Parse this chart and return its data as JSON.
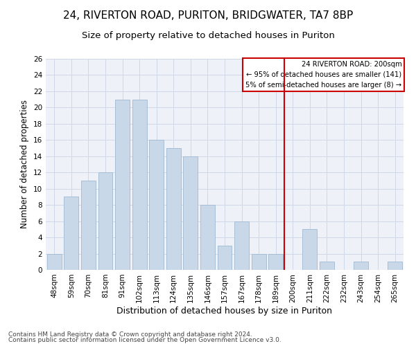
{
  "title1": "24, RIVERTON ROAD, PURITON, BRIDGWATER, TA7 8BP",
  "title2": "Size of property relative to detached houses in Puriton",
  "xlabel": "Distribution of detached houses by size in Puriton",
  "ylabel": "Number of detached properties",
  "categories": [
    "48sqm",
    "59sqm",
    "70sqm",
    "81sqm",
    "91sqm",
    "102sqm",
    "113sqm",
    "124sqm",
    "135sqm",
    "146sqm",
    "157sqm",
    "167sqm",
    "178sqm",
    "189sqm",
    "200sqm",
    "211sqm",
    "222sqm",
    "232sqm",
    "243sqm",
    "254sqm",
    "265sqm"
  ],
  "values": [
    2,
    9,
    11,
    12,
    21,
    21,
    16,
    15,
    14,
    8,
    3,
    6,
    2,
    2,
    0,
    5,
    1,
    0,
    1,
    0,
    1
  ],
  "bar_color": "#c8d8e8",
  "bar_edge_color": "#a0b8d0",
  "vline_color": "#cc0000",
  "vline_index": 13.5,
  "box_text_line1": "24 RIVERTON ROAD: 200sqm",
  "box_text_line2": "← 95% of detached houses are smaller (141)",
  "box_text_line3": "5% of semi-detached houses are larger (8) →",
  "box_color": "#cc0000",
  "ylim": [
    0,
    26
  ],
  "yticks": [
    0,
    2,
    4,
    6,
    8,
    10,
    12,
    14,
    16,
    18,
    20,
    22,
    24,
    26
  ],
  "grid_color": "#d0d8e8",
  "background_color": "#eef2f8",
  "footer1": "Contains HM Land Registry data © Crown copyright and database right 2024.",
  "footer2": "Contains public sector information licensed under the Open Government Licence v3.0.",
  "title1_fontsize": 11,
  "title2_fontsize": 9.5,
  "xlabel_fontsize": 9,
  "ylabel_fontsize": 8.5,
  "tick_fontsize": 7.5,
  "footer_fontsize": 6.5
}
